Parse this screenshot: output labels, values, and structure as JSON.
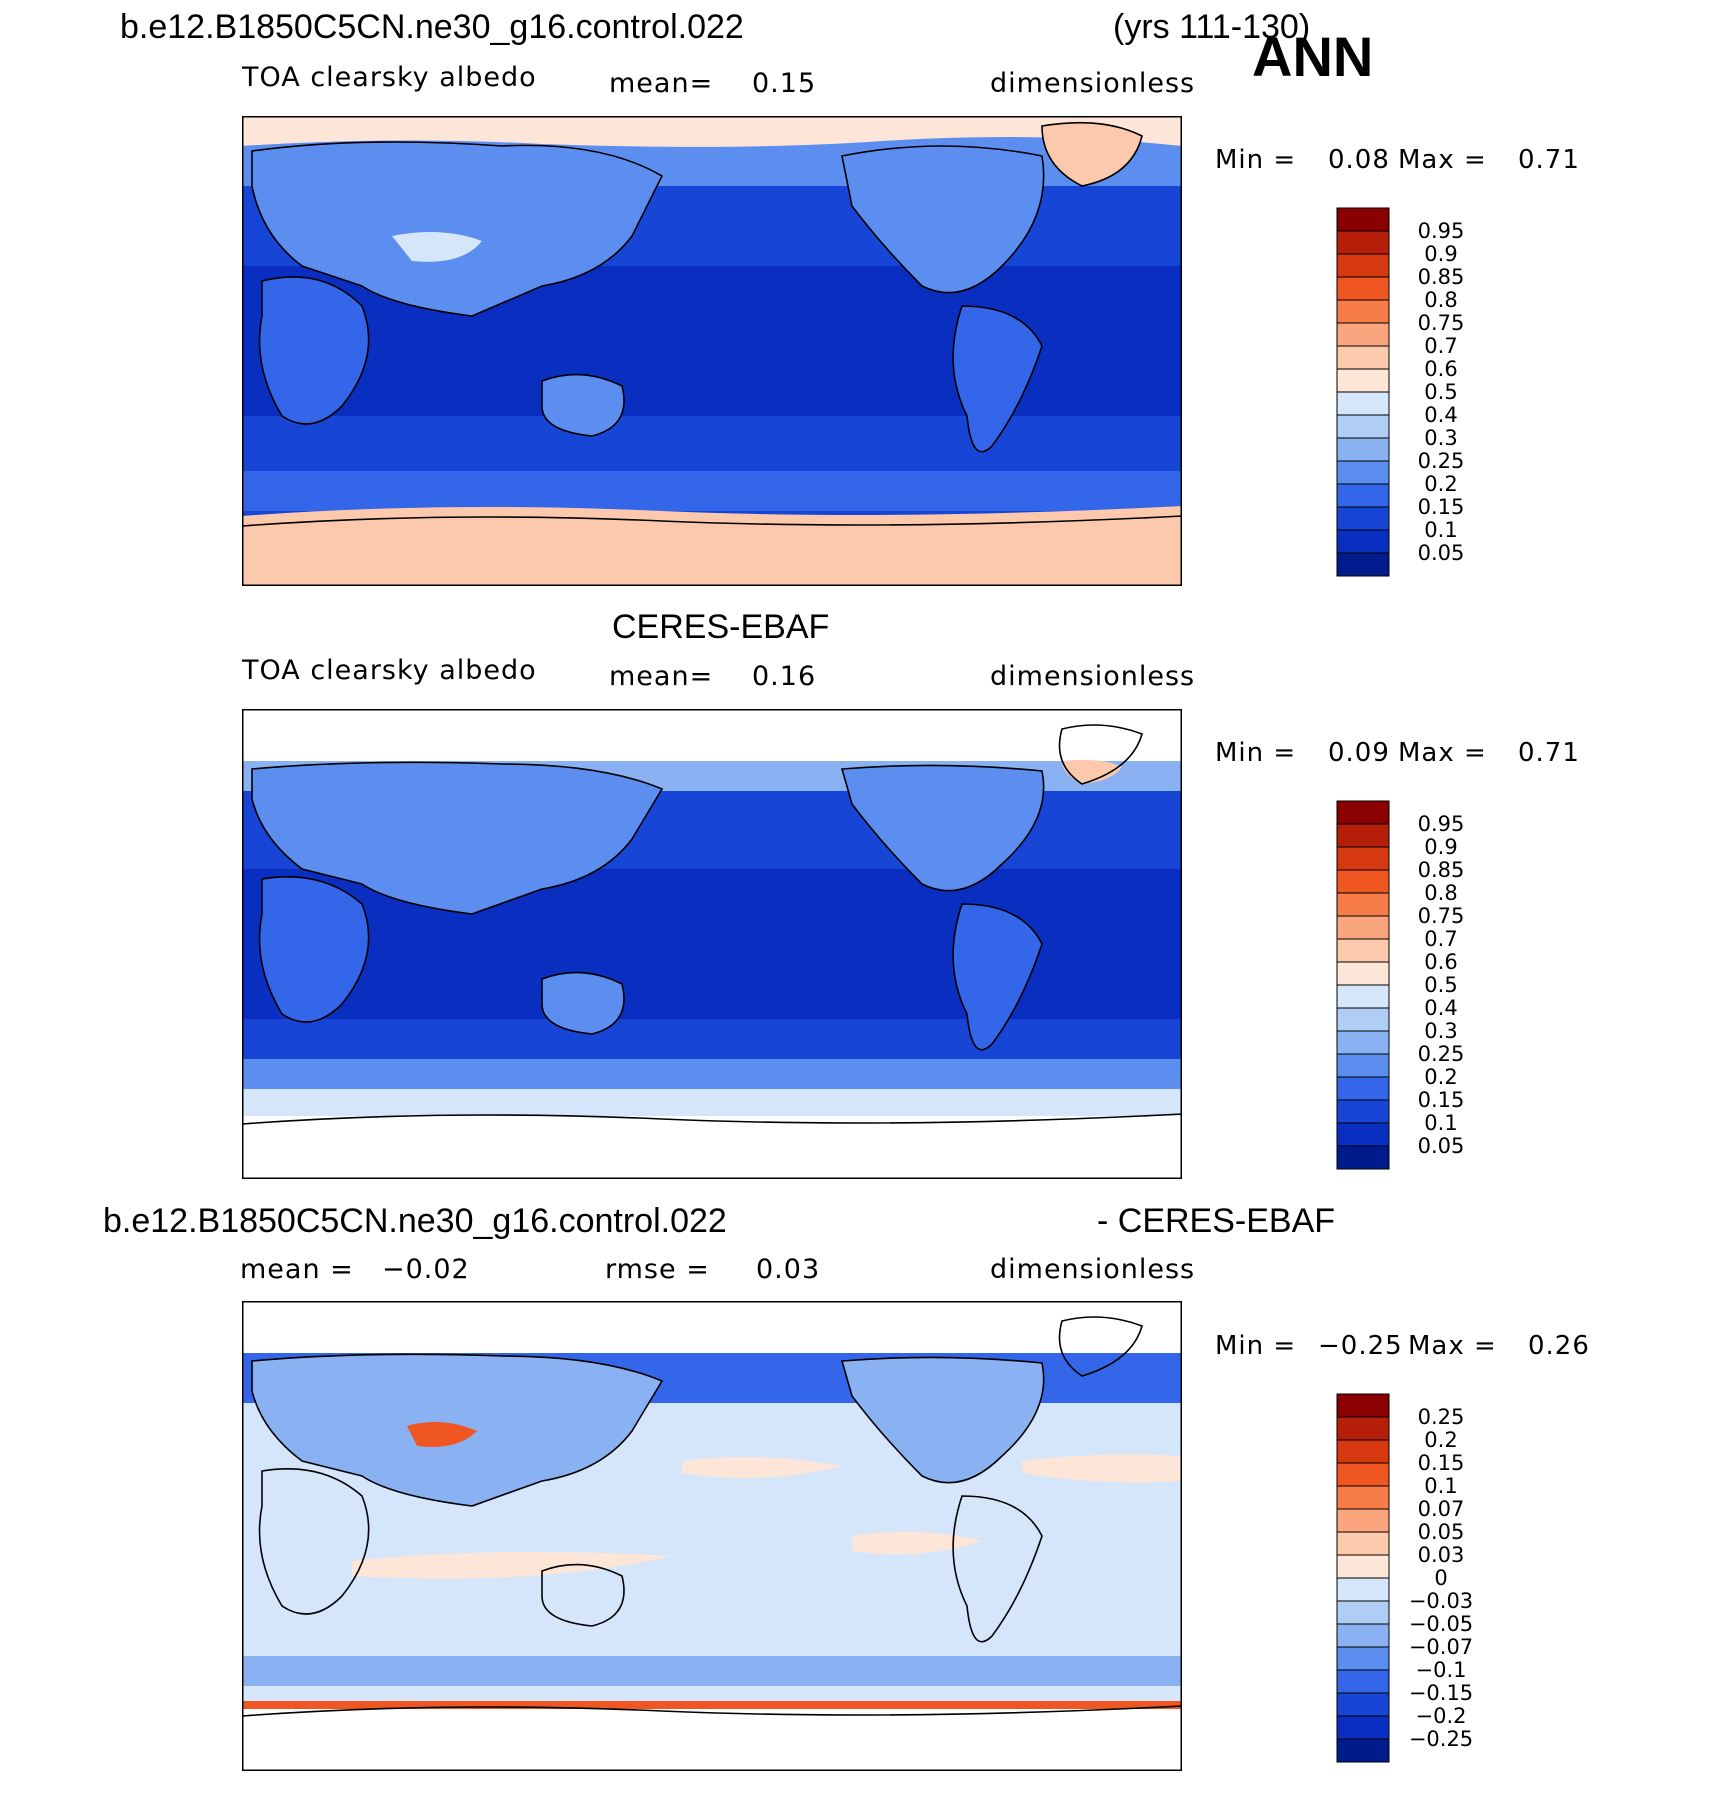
{
  "header": {
    "case_name": "b.e12.B1850C5CN.ne30_g16.control.022",
    "years": "(yrs 111-130)",
    "season": "ANN"
  },
  "panels": [
    {
      "title": "",
      "variable": "TOA clearsky albedo",
      "stat1_label": "mean=",
      "stat1_value": "0.15",
      "stat2_label": "",
      "stat2_value": "",
      "units": "dimensionless",
      "min_label": "Min =",
      "min_value": "0.08",
      "max_label": "Max =",
      "max_value": "0.71"
    },
    {
      "title": "CERES-EBAF",
      "variable": "TOA clearsky albedo",
      "stat1_label": "mean=",
      "stat1_value": "0.16",
      "stat2_label": "",
      "stat2_value": "",
      "units": "dimensionless",
      "min_label": "Min =",
      "min_value": "0.09",
      "max_label": "Max =",
      "max_value": "0.71"
    },
    {
      "title_left": "b.e12.B1850C5CN.ne30_g16.control.022",
      "title_right": "- CERES-EBAF",
      "variable": "",
      "stat1_label": "mean =",
      "stat1_value": "−0.02",
      "stat2_label": "rmse =",
      "stat2_value": "0.03",
      "units": "dimensionless",
      "min_label": "Min =",
      "min_value": "−0.25",
      "max_label": "Max =",
      "max_value": "0.26"
    }
  ],
  "colorbars": {
    "albedo": {
      "labels": [
        "0.95",
        "0.9",
        "0.85",
        "0.8",
        "0.75",
        "0.7",
        "0.6",
        "0.5",
        "0.4",
        "0.3",
        "0.25",
        "0.2",
        "0.15",
        "0.1",
        "0.05"
      ],
      "colors": [
        "#8a0000",
        "#b51f0a",
        "#d6380f",
        "#ef5622",
        "#f77c48",
        "#fba57e",
        "#fcc9ad",
        "#fde6d7",
        "#d5e6fa",
        "#b0cdf6",
        "#8ab2f2",
        "#5c8ef0",
        "#3366e8",
        "#1745d6",
        "#0a2ec0",
        "#001c8c"
      ]
    },
    "difference": {
      "labels": [
        "0.25",
        "0.2",
        "0.15",
        "0.1",
        "0.07",
        "0.05",
        "0.03",
        "0",
        "−0.03",
        "−0.05",
        "−0.07",
        "−0.1",
        "−0.15",
        "−0.2",
        "−0.25"
      ],
      "colors": [
        "#8a0000",
        "#b51f0a",
        "#d6380f",
        "#ef5622",
        "#f77c48",
        "#fba57e",
        "#fcc9ad",
        "#fde6d7",
        "#d5e6fa",
        "#b0cdf6",
        "#8ab2f2",
        "#5c8ef0",
        "#3366e8",
        "#1745d6",
        "#0a2ec0",
        "#001c8c"
      ]
    }
  },
  "map_colors": {
    "ocean_deep": "#0a2ec0",
    "ocean_mid": "#1745d6",
    "ocean_light": "#3366e8",
    "land_blue": "#5c8ef0",
    "land_light": "#8ab2f2",
    "pale_blue": "#d5e6fa",
    "ice_peach": "#fcc9ad",
    "ice_light": "#fde6d7",
    "diff_base": "#d5e6fa",
    "diff_red": "#ef5622",
    "coastline": "#000000"
  }
}
